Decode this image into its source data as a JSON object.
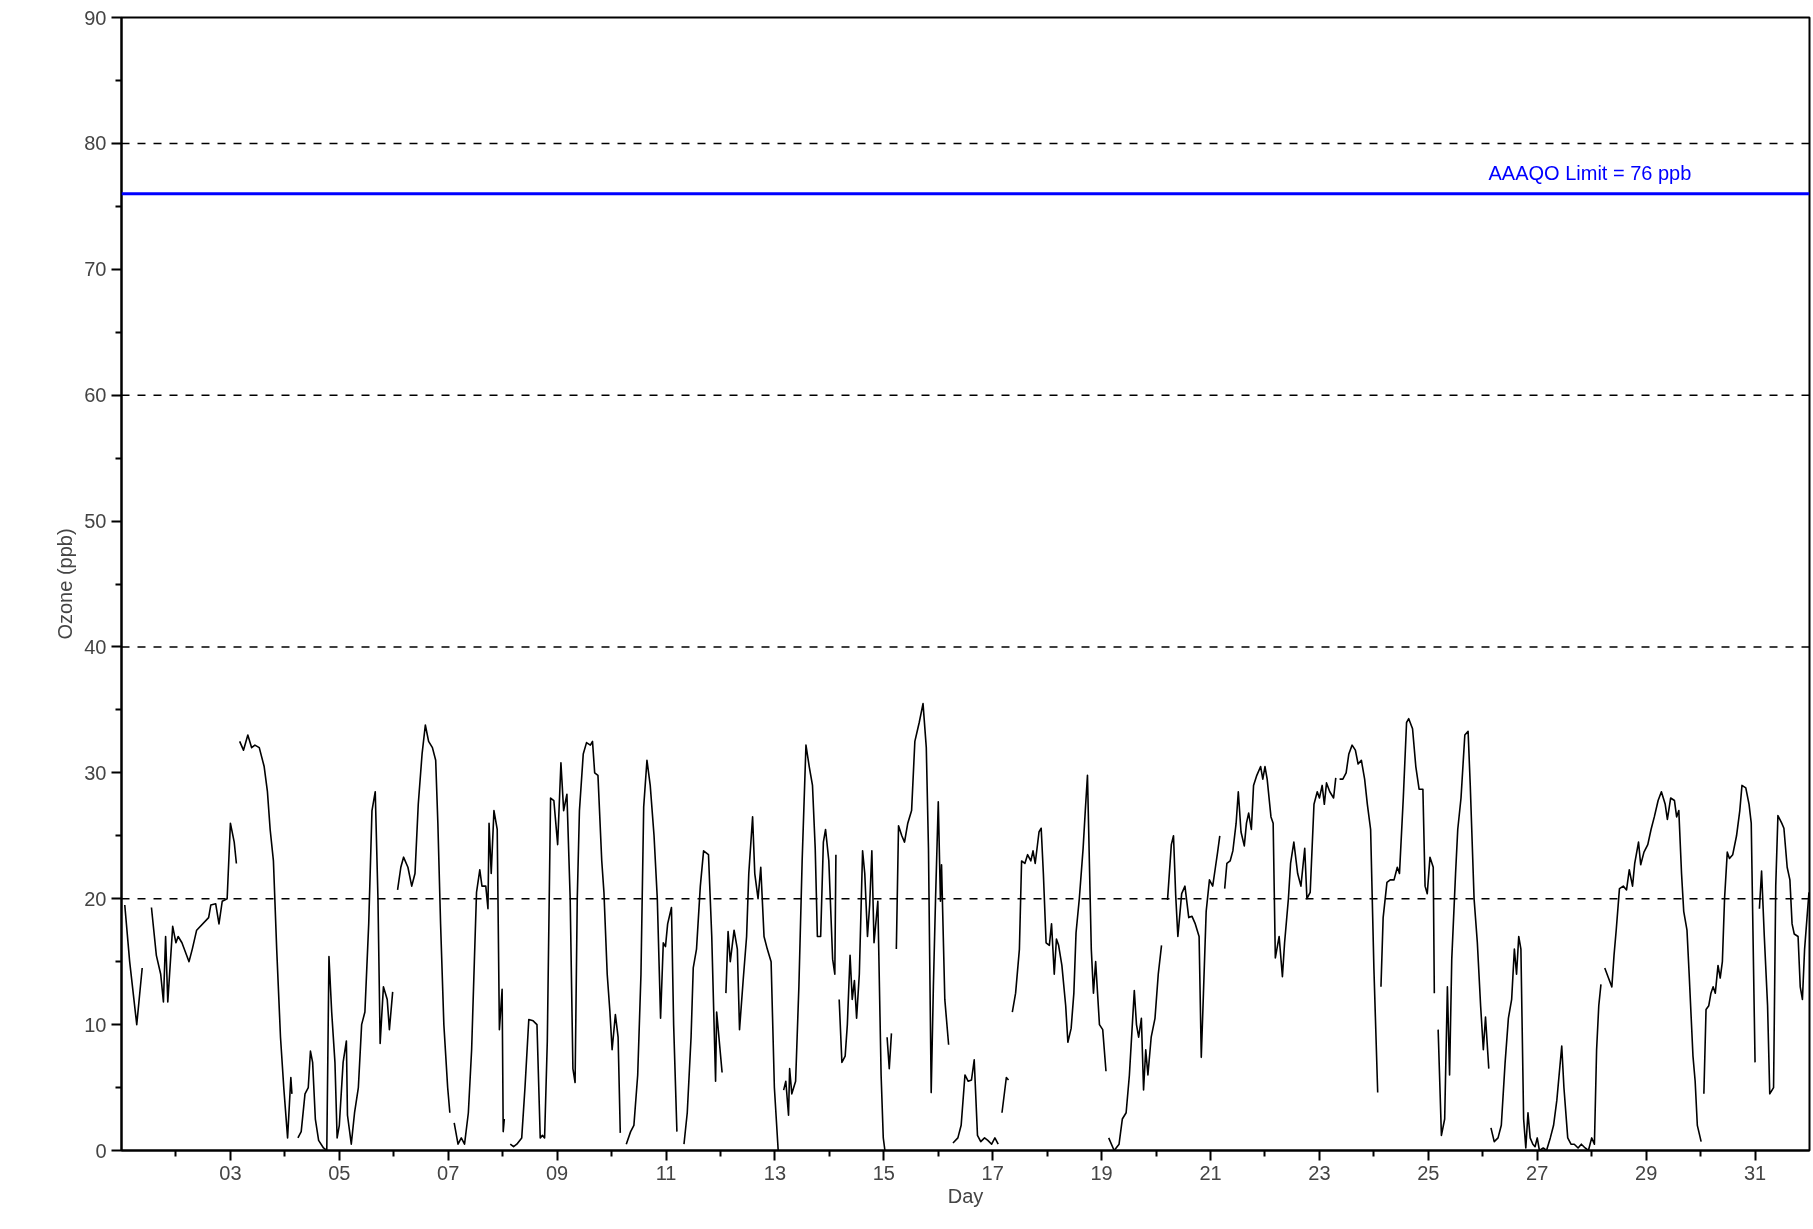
{
  "chart_data": {
    "type": "line",
    "xlabel": "Day",
    "ylabel": "Ozone (ppb)",
    "xlim": [
      1,
      32
    ],
    "ylim": [
      0,
      90
    ],
    "xticks": [
      {
        "value": 2,
        "label": null
      },
      {
        "value": 3,
        "label": "03"
      },
      {
        "value": 4,
        "label": null
      },
      {
        "value": 5,
        "label": "05"
      },
      {
        "value": 6,
        "label": null
      },
      {
        "value": 7,
        "label": "07"
      },
      {
        "value": 8,
        "label": null
      },
      {
        "value": 9,
        "label": "09"
      },
      {
        "value": 10,
        "label": null
      },
      {
        "value": 11,
        "label": "11"
      },
      {
        "value": 12,
        "label": null
      },
      {
        "value": 13,
        "label": "13"
      },
      {
        "value": 14,
        "label": null
      },
      {
        "value": 15,
        "label": "15"
      },
      {
        "value": 16,
        "label": null
      },
      {
        "value": 17,
        "label": "17"
      },
      {
        "value": 18,
        "label": null
      },
      {
        "value": 19,
        "label": "19"
      },
      {
        "value": 20,
        "label": null
      },
      {
        "value": 21,
        "label": "21"
      },
      {
        "value": 22,
        "label": null
      },
      {
        "value": 23,
        "label": "23"
      },
      {
        "value": 24,
        "label": null
      },
      {
        "value": 25,
        "label": "25"
      },
      {
        "value": 26,
        "label": null
      },
      {
        "value": 27,
        "label": "27"
      },
      {
        "value": 28,
        "label": null
      },
      {
        "value": 29,
        "label": "29"
      },
      {
        "value": 30,
        "label": null
      },
      {
        "value": 31,
        "label": "31"
      }
    ],
    "yticks": [
      0,
      {
        "value": 5,
        "label": null
      },
      10,
      {
        "value": 15,
        "label": null
      },
      20,
      {
        "value": 25,
        "label": null
      },
      30,
      {
        "value": 35,
        "label": null
      },
      40,
      {
        "value": 45,
        "label": null
      },
      50,
      {
        "value": 55,
        "label": null
      },
      60,
      {
        "value": 65,
        "label": null
      },
      70,
      {
        "value": 75,
        "label": null
      },
      80,
      {
        "value": 85,
        "label": null
      },
      90
    ],
    "ref_lines": [
      {
        "axis": "y",
        "value": 20,
        "label": null,
        "color": "#000000",
        "line_style": "dashed"
      },
      {
        "axis": "y",
        "value": 40,
        "label": null,
        "color": "#000000",
        "line_style": "dashed"
      },
      {
        "axis": "y",
        "value": 60,
        "label": null,
        "color": "#000000",
        "line_style": "dashed"
      },
      {
        "axis": "y",
        "value": 80,
        "label": null,
        "color": "#000000",
        "line_style": "dashed"
      },
      {
        "axis": "y",
        "value": 76,
        "label": "AAAQO Limit = 76 ppb",
        "color": "#0000ff",
        "line_style": "solid"
      }
    ],
    "x": [
      1.06,
      1.15,
      1.28,
      1.38,
      1.46,
      1.55,
      1.64,
      1.72,
      1.77,
      1.81,
      1.85,
      1.94,
      2.0,
      2.04,
      2.11,
      2.24,
      2.3,
      2.38,
      2.6,
      2.64,
      2.73,
      2.79,
      2.85,
      2.94,
      3.0,
      3.07,
      3.11,
      3.14,
      3.17,
      3.24,
      3.32,
      3.39,
      3.45,
      3.53,
      3.62,
      3.68,
      3.73,
      3.79,
      3.85,
      3.92,
      3.98,
      4.05,
      4.11,
      4.13,
      4.19,
      4.24,
      4.3,
      4.37,
      4.43,
      4.47,
      4.51,
      4.56,
      4.62,
      4.71,
      4.77,
      4.81,
      4.86,
      4.92,
      4.96,
      5.0,
      5.07,
      5.13,
      5.15,
      5.22,
      5.28,
      5.35,
      5.41,
      5.47,
      5.54,
      5.6,
      5.66,
      5.71,
      5.75,
      5.81,
      5.88,
      5.92,
      5.98,
      6.03,
      6.07,
      6.13,
      6.18,
      6.26,
      6.33,
      6.39,
      6.45,
      6.52,
      6.58,
      6.64,
      6.71,
      6.77,
      6.81,
      6.86,
      6.92,
      6.99,
      7.03,
      7.07,
      7.11,
      7.18,
      7.24,
      7.3,
      7.37,
      7.43,
      7.48,
      7.52,
      7.58,
      7.62,
      7.69,
      7.73,
      7.75,
      7.79,
      7.84,
      7.9,
      7.94,
      7.99,
      8.01,
      8.03,
      8.09,
      8.14,
      8.2,
      8.26,
      8.35,
      8.41,
      8.48,
      8.56,
      8.63,
      8.69,
      8.73,
      8.77,
      8.82,
      8.88,
      8.94,
      9.01,
      9.07,
      9.12,
      9.18,
      9.24,
      9.29,
      9.33,
      9.37,
      9.41,
      9.48,
      9.54,
      9.61,
      9.65,
      9.69,
      9.75,
      9.82,
      9.86,
      9.92,
      9.97,
      10.01,
      10.07,
      10.12,
      10.16,
      10.22,
      10.27,
      10.35,
      10.41,
      10.48,
      10.54,
      10.59,
      10.65,
      10.71,
      10.78,
      10.84,
      10.9,
      10.95,
      10.99,
      11.03,
      11.1,
      11.14,
      11.2,
      11.27,
      11.33,
      11.39,
      11.46,
      11.5,
      11.56,
      11.63,
      11.69,
      11.78,
      11.84,
      11.91,
      11.93,
      12.03,
      12.07,
      12.1,
      12.14,
      12.18,
      12.25,
      12.31,
      12.35,
      12.42,
      12.48,
      12.52,
      12.59,
      12.63,
      12.69,
      12.74,
      12.8,
      12.86,
      12.93,
      12.99,
      13.06,
      13.11,
      13.16,
      13.2,
      13.25,
      13.27,
      13.31,
      13.38,
      13.44,
      13.5,
      13.57,
      13.63,
      13.69,
      13.74,
      13.78,
      13.84,
      13.89,
      13.93,
      13.99,
      14.06,
      14.1,
      14.12,
      14.15,
      14.18,
      14.23,
      14.29,
      14.33,
      14.38,
      14.42,
      14.46,
      14.5,
      14.55,
      14.61,
      14.65,
      14.7,
      14.74,
      14.78,
      14.82,
      14.89,
      14.95,
      14.99,
      15.02,
      15.04,
      15.06,
      15.1,
      15.14,
      15.18,
      15.23,
      15.27,
      15.33,
      15.38,
      15.44,
      15.51,
      15.57,
      15.65,
      15.72,
      15.78,
      15.82,
      15.87,
      15.91,
      15.95,
      16.0,
      16.04,
      16.06,
      16.12,
      16.19,
      16.23,
      16.27,
      16.36,
      16.42,
      16.49,
      16.55,
      16.61,
      16.66,
      16.72,
      16.78,
      16.85,
      16.91,
      16.98,
      17.04,
      17.1,
      17.13,
      17.17,
      17.25,
      17.29,
      17.32,
      17.36,
      17.42,
      17.49,
      17.53,
      17.59,
      17.64,
      17.7,
      17.74,
      17.78,
      17.85,
      17.89,
      17.93,
      17.98,
      18.04,
      18.08,
      18.13,
      18.17,
      18.21,
      18.27,
      18.34,
      18.38,
      18.44,
      18.49,
      18.53,
      18.59,
      18.66,
      18.7,
      18.74,
      18.81,
      18.85,
      18.89,
      18.96,
      19.02,
      19.08,
      19.1,
      19.13,
      19.23,
      19.32,
      19.38,
      19.45,
      19.51,
      19.6,
      19.64,
      19.68,
      19.73,
      19.77,
      19.81,
      19.85,
      19.91,
      19.98,
      20.04,
      20.1,
      20.15,
      20.21,
      20.28,
      20.32,
      20.36,
      20.4,
      20.47,
      20.53,
      20.6,
      20.66,
      20.72,
      20.79,
      20.83,
      20.87,
      20.92,
      20.98,
      21.04,
      21.09,
      21.13,
      21.17,
      21.21,
      21.26,
      21.3,
      21.36,
      21.41,
      21.47,
      21.51,
      21.56,
      21.62,
      21.66,
      21.7,
      21.75,
      21.79,
      21.85,
      21.92,
      21.96,
      22.0,
      22.04,
      22.11,
      22.15,
      22.19,
      22.26,
      22.32,
      22.36,
      22.43,
      22.47,
      22.53,
      22.6,
      22.66,
      22.73,
      22.77,
      22.83,
      22.9,
      22.96,
      23.0,
      23.05,
      23.09,
      23.13,
      23.19,
      23.26,
      23.3,
      23.33,
      23.37,
      23.43,
      23.49,
      23.54,
      23.6,
      23.66,
      23.71,
      23.77,
      23.83,
      23.88,
      23.94,
      24.0,
      24.07,
      24.1,
      24.13,
      24.17,
      24.24,
      24.3,
      24.37,
      24.43,
      24.47,
      24.54,
      24.6,
      24.64,
      24.71,
      24.77,
      24.83,
      24.9,
      24.94,
      24.98,
      25.03,
      25.09,
      25.11,
      25.15,
      25.18,
      25.24,
      25.3,
      25.35,
      25.39,
      25.43,
      25.5,
      25.54,
      25.6,
      25.67,
      25.73,
      25.77,
      25.84,
      25.9,
      25.96,
      26.01,
      26.05,
      26.11,
      26.13,
      26.15,
      26.21,
      26.28,
      26.34,
      26.41,
      26.47,
      26.53,
      26.58,
      26.62,
      26.66,
      26.7,
      26.75,
      26.79,
      26.83,
      26.87,
      26.92,
      26.96,
      27.0,
      27.04,
      27.11,
      27.17,
      27.24,
      27.3,
      27.36,
      27.45,
      27.49,
      27.56,
      27.62,
      27.68,
      27.75,
      27.81,
      27.88,
      27.94,
      28.0,
      28.05,
      28.09,
      28.13,
      28.17,
      28.2,
      28.24,
      28.3,
      28.37,
      28.41,
      28.45,
      28.51,
      28.58,
      28.64,
      28.69,
      28.75,
      28.79,
      28.86,
      28.9,
      28.96,
      29.03,
      29.09,
      29.15,
      29.22,
      29.28,
      29.35,
      29.39,
      29.45,
      29.52,
      29.56,
      29.6,
      29.65,
      29.69,
      29.75,
      29.79,
      29.86,
      29.9,
      29.94,
      30.01,
      30.04,
      30.06,
      30.1,
      30.15,
      30.19,
      30.23,
      30.27,
      30.32,
      30.36,
      30.4,
      30.44,
      30.49,
      30.53,
      30.59,
      30.66,
      30.72,
      30.76,
      30.83,
      30.89,
      30.93,
      31.0,
      31.04,
      31.08,
      31.12,
      31.17,
      31.23,
      31.27,
      31.34,
      31.38,
      31.42,
      31.49,
      31.53,
      31.59,
      31.64,
      31.68,
      31.72,
      31.79,
      31.83,
      31.87,
      31.91,
      31.99
    ],
    "series": [
      {
        "color": "#000000",
        "values": [
          19.5,
          15,
          10,
          14.5,
          null,
          19.3,
          15.5,
          14,
          11.8,
          17,
          11.8,
          17.8,
          16.5,
          17,
          16.5,
          15,
          16,
          17.5,
          18.5,
          19.5,
          19.6,
          18,
          19.8,
          20,
          26,
          24.5,
          22.8,
          null,
          32.5,
          31.8,
          33,
          32,
          32.2,
          32,
          30.5,
          28.5,
          25.5,
          23,
          16,
          9,
          5,
          1,
          5.8,
          4.5,
          null,
          1,
          1.5,
          4.5,
          5,
          7.9,
          7,
          2.5,
          0.8,
          0.2,
          0,
          15.4,
          11,
          7,
          1,
          2,
          7,
          8.7,
          2.8,
          0.5,
          3,
          5,
          10,
          11,
          18,
          27,
          28.5,
          20,
          8.5,
          13,
          12,
          9.6,
          12.6,
          null,
          20.7,
          22.5,
          23.3,
          22.5,
          21,
          22,
          27.5,
          31.5,
          33.8,
          32.5,
          32,
          31,
          26,
          18,
          10,
          5,
          3,
          null,
          2.2,
          0.5,
          1,
          0.5,
          3,
          8,
          15,
          20.5,
          22.3,
          21,
          21,
          19.2,
          26,
          22,
          27,
          25.5,
          9.6,
          12.8,
          1.5,
          2.5,
          null,
          0.5,
          0.3,
          0.5,
          1,
          5,
          10.4,
          10.3,
          10,
          1,
          1.2,
          1,
          8.7,
          28,
          27.8,
          24.3,
          30.8,
          27,
          28.3,
          20,
          6.5,
          5.4,
          20,
          27,
          31.5,
          32.4,
          32.2,
          32.5,
          30,
          29.8,
          23,
          20.5,
          14,
          11,
          8,
          10.8,
          9,
          1.4,
          null,
          0.5,
          1.5,
          2,
          6,
          14,
          27.3,
          31,
          29,
          25,
          20,
          10.5,
          16.5,
          16.2,
          18,
          19.3,
          10,
          1.5,
          null,
          0.5,
          3,
          9,
          14.5,
          16,
          21,
          23.8,
          23.5,
          17,
          5.5,
          11,
          6.2,
          null,
          12.5,
          17.4,
          15,
          17.5,
          16,
          9.6,
          13.7,
          17,
          22,
          26.5,
          22,
          20,
          22.5,
          17,
          16,
          15,
          5,
          0,
          null,
          4.8,
          5.5,
          2.8,
          6.5,
          4.5,
          5.5,
          13,
          23,
          32.2,
          30.5,
          29,
          24,
          17,
          17,
          24.5,
          25.5,
          23,
          15.2,
          14,
          23.5,
          null,
          12,
          7,
          7.5,
          10,
          15.5,
          12,
          13.5,
          10.5,
          14,
          23.8,
          22,
          17,
          19.5,
          23.8,
          16.5,
          19.8,
          6,
          1,
          0,
          null,
          9,
          6.5,
          9.3,
          null,
          16,
          25.8,
          25,
          24.5,
          26,
          27,
          32.5,
          34,
          35.5,
          32,
          24,
          4.6,
          13,
          20,
          27.7,
          19.8,
          22.7,
          12,
          8.4,
          null,
          0.6,
          1,
          2,
          6,
          5.5,
          5.6,
          7.2,
          1.2,
          0.7,
          1,
          0.8,
          0.5,
          1,
          0.5,
          null,
          3,
          5.8,
          5.6,
          null,
          11,
          12.5,
          16,
          23,
          22.8,
          23.5,
          23,
          23.8,
          22.8,
          25.3,
          25.6,
          22,
          16.5,
          16.3,
          18,
          14,
          16.8,
          16.3,
          14.7,
          11.5,
          8.6,
          9.7,
          12.5,
          17.3,
          20,
          24,
          27,
          29.8,
          16,
          12.5,
          15,
          10,
          9.6,
          6.3,
          null,
          1,
          0,
          0.5,
          2.5,
          3,
          6,
          12.7,
          10,
          9,
          10.5,
          4.8,
          8,
          6,
          9,
          10.5,
          14,
          16.3,
          null,
          19.9,
          24.3,
          25,
          20.3,
          17,
          20.4,
          21,
          18.5,
          18.6,
          18,
          17,
          7.4,
          12.5,
          19,
          21.5,
          21,
          22.5,
          23.7,
          25,
          null,
          20.8,
          22.8,
          23,
          23.8,
          26,
          28.5,
          25.3,
          24.2,
          26,
          26.8,
          25.5,
          29,
          29.8,
          30.5,
          29.5,
          30.5,
          29.5,
          26.5,
          26,
          15.3,
          17,
          13.8,
          16.5,
          20,
          22.8,
          24.5,
          22,
          21,
          24,
          20,
          20.5,
          27.5,
          28.5,
          28,
          29,
          27.5,
          29.2,
          28.5,
          28,
          29.6,
          null,
          29.5,
          29.5,
          30,
          31.5,
          32.2,
          31.8,
          30.7,
          31,
          29.5,
          27.5,
          25.5,
          14.5,
          4.6,
          null,
          13,
          18.5,
          21.3,
          21.5,
          21.5,
          22.5,
          22,
          28,
          34,
          34.3,
          33.5,
          30.5,
          28.7,
          28.7,
          21,
          20.4,
          23.3,
          22.5,
          12.5,
          null,
          9.6,
          1.2,
          2.5,
          13,
          6,
          15.2,
          22,
          25.5,
          28,
          33,
          33.3,
          29,
          20,
          16.5,
          11.5,
          8,
          10.6,
          6.5,
          null,
          1.8,
          0.7,
          1,
          2,
          7,
          10.5,
          12,
          16,
          14,
          17,
          16,
          2.5,
          0.2,
          3,
          1,
          0.5,
          0.3,
          1,
          0,
          0.2,
          0,
          1,
          2,
          4,
          8.3,
          5,
          1,
          0.5,
          0.5,
          0.2,
          0.5,
          0.2,
          0,
          1,
          0.5,
          8,
          11.5,
          13.2,
          null,
          14.5,
          13.8,
          13,
          15.5,
          17.5,
          20.8,
          21,
          20.7,
          22.3,
          21,
          22.8,
          24.5,
          22.7,
          23.7,
          24.3,
          25.5,
          26.5,
          27.8,
          28.5,
          27.5,
          26.3,
          28,
          27.8,
          26.5,
          27,
          22,
          19,
          17.5,
          14,
          7.5,
          5.5,
          2,
          0.7,
          null,
          4.5,
          11.2,
          11.5,
          12.5,
          13,
          12.5,
          14.7,
          13.7,
          15,
          20,
          23.7,
          23.2,
          23.5,
          25,
          27,
          29,
          28.8,
          27.5,
          26,
          7,
          null,
          19.2,
          22.2,
          17,
          11.5,
          4.5,
          5,
          21,
          26.6,
          26,
          25.6,
          22.5,
          21.5,
          18,
          17.2,
          17,
          13,
          12,
          16,
          20.5
        ]
      }
    ]
  }
}
